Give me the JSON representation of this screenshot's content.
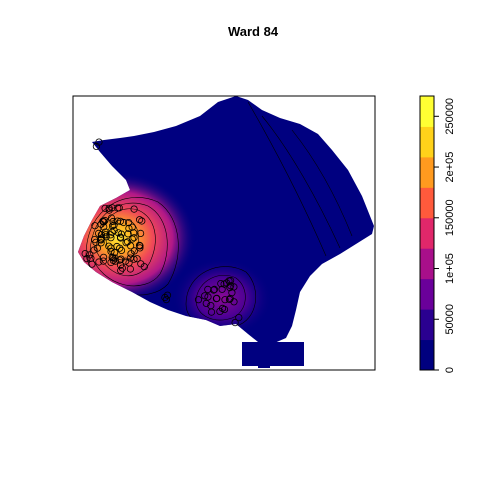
{
  "chart_data": {
    "type": "heatmap",
    "title": "Ward 84",
    "xlabel": "",
    "ylabel": "",
    "colorbar": {
      "range": [
        0,
        270000
      ],
      "ticks": [
        {
          "value": 0,
          "label": "0"
        },
        {
          "value": 50000,
          "label": "50000"
        },
        {
          "value": 100000,
          "label": "1e+05"
        },
        {
          "value": 150000,
          "label": "150000"
        },
        {
          "value": 200000,
          "label": "2e+05"
        },
        {
          "value": 250000,
          "label": "250000"
        }
      ],
      "colors": [
        "#00007f",
        "#2a0090",
        "#6a009a",
        "#a80f8a",
        "#e0276a",
        "#ff5a3c",
        "#ff9a1f",
        "#ffd21a",
        "#ffff33"
      ]
    },
    "map_fill_base": "#000080",
    "hotspots": [
      {
        "name": "west-cluster",
        "peak": 270000
      },
      {
        "name": "south-cluster",
        "peak": 120000
      }
    ],
    "points_marker": "open-circle"
  }
}
